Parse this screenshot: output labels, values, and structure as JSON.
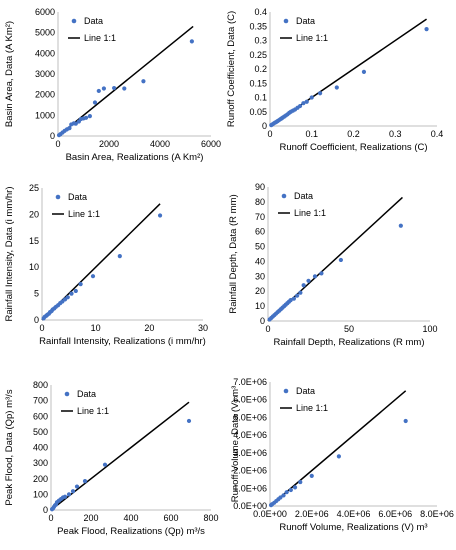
{
  "chart_data": [
    {
      "type": "scatter",
      "xlabel": "Basin Area, Realizations (A Km²)",
      "ylabel": "Basin Area, Data (A Km²)",
      "xlim": [
        0,
        6000
      ],
      "ylim": [
        0,
        6000
      ],
      "xticks": [
        "0",
        "2000",
        "4000",
        "6000"
      ],
      "yticks": [
        "0",
        "1000",
        "2000",
        "3000",
        "4000",
        "5000",
        "6000"
      ],
      "legend": [
        "Data",
        "Line 1:1"
      ],
      "line": [
        [
          0,
          0
        ],
        [
          5300,
          5300
        ]
      ],
      "points": [
        [
          40,
          40
        ],
        [
          100,
          90
        ],
        [
          180,
          170
        ],
        [
          260,
          250
        ],
        [
          350,
          320
        ],
        [
          450,
          380
        ],
        [
          520,
          560
        ],
        [
          620,
          610
        ],
        [
          700,
          600
        ],
        [
          820,
          700
        ],
        [
          900,
          820
        ],
        [
          1000,
          850
        ],
        [
          1100,
          880
        ],
        [
          1250,
          960
        ],
        [
          1450,
          1620
        ],
        [
          1600,
          2180
        ],
        [
          1800,
          2300
        ],
        [
          2200,
          2320
        ],
        [
          2600,
          2300
        ],
        [
          3350,
          2650
        ],
        [
          5250,
          4580
        ]
      ]
    },
    {
      "type": "scatter",
      "xlabel": "Runoff Coefficient, Realizations (C)",
      "ylabel": "Runoff Coefficient, Data (C)",
      "xlim": [
        0,
        0.4
      ],
      "ylim": [
        0,
        0.4
      ],
      "xticks": [
        "0",
        "0.1",
        "0.2",
        "0.3",
        "0.4"
      ],
      "yticks": [
        "0",
        "0.05",
        "0.1",
        "0.15",
        "0.2",
        "0.25",
        "0.3",
        "0.35",
        "0.4"
      ],
      "legend": [
        "Data",
        "Line 1:1"
      ],
      "line": [
        [
          0,
          0
        ],
        [
          0.375,
          0.375
        ]
      ],
      "points": [
        [
          0.003,
          0.003
        ],
        [
          0.006,
          0.006
        ],
        [
          0.009,
          0.009
        ],
        [
          0.012,
          0.012
        ],
        [
          0.015,
          0.014
        ],
        [
          0.018,
          0.017
        ],
        [
          0.021,
          0.02
        ],
        [
          0.024,
          0.023
        ],
        [
          0.027,
          0.026
        ],
        [
          0.03,
          0.029
        ],
        [
          0.034,
          0.033
        ],
        [
          0.038,
          0.037
        ],
        [
          0.042,
          0.041
        ],
        [
          0.046,
          0.046
        ],
        [
          0.05,
          0.05
        ],
        [
          0.055,
          0.054
        ],
        [
          0.06,
          0.058
        ],
        [
          0.066,
          0.064
        ],
        [
          0.072,
          0.07
        ],
        [
          0.08,
          0.08
        ],
        [
          0.088,
          0.085
        ],
        [
          0.1,
          0.1
        ],
        [
          0.12,
          0.115
        ],
        [
          0.16,
          0.135
        ],
        [
          0.225,
          0.19
        ],
        [
          0.375,
          0.34
        ]
      ]
    },
    {
      "type": "scatter",
      "xlabel": "Rainfall Intensity, Realizations (i mm/hr)",
      "ylabel": "Rainfall Intensity, Data (i mm/hr)",
      "xlim": [
        0,
        30
      ],
      "ylim": [
        0,
        25
      ],
      "xticks": [
        "0",
        "10",
        "20",
        "30"
      ],
      "yticks": [
        "0",
        "5",
        "10",
        "15",
        "20",
        "25"
      ],
      "legend": [
        "Data",
        "Line 1:1"
      ],
      "line": [
        [
          0,
          0
        ],
        [
          22,
          22
        ]
      ],
      "points": [
        [
          0.3,
          0.3
        ],
        [
          0.5,
          0.6
        ],
        [
          0.8,
          0.8
        ],
        [
          1.0,
          1.0
        ],
        [
          1.3,
          1.2
        ],
        [
          1.5,
          1.5
        ],
        [
          1.8,
          1.7
        ],
        [
          2.0,
          2.0
        ],
        [
          2.3,
          2.2
        ],
        [
          2.6,
          2.5
        ],
        [
          3.0,
          2.8
        ],
        [
          3.4,
          3.2
        ],
        [
          3.8,
          3.5
        ],
        [
          4.3,
          3.9
        ],
        [
          4.8,
          4.3
        ],
        [
          5.5,
          5.0
        ],
        [
          6.3,
          5.5
        ],
        [
          7.2,
          6.8
        ],
        [
          9.5,
          8.3
        ],
        [
          14.5,
          12.1
        ],
        [
          22.0,
          19.8
        ]
      ]
    },
    {
      "type": "scatter",
      "xlabel": "Rainfall Depth, Realizations (R mm)",
      "ylabel": "Rainfall Depth, Data (R mm)",
      "xlim": [
        0,
        100
      ],
      "ylim": [
        0,
        90
      ],
      "xticks": [
        "0",
        "50",
        "100"
      ],
      "yticks": [
        "0",
        "10",
        "20",
        "30",
        "40",
        "50",
        "60",
        "70",
        "80",
        "90"
      ],
      "legend": [
        "Data",
        "Line 1:1"
      ],
      "line": [
        [
          0,
          0
        ],
        [
          83,
          83
        ]
      ],
      "points": [
        [
          1,
          1
        ],
        [
          2,
          2
        ],
        [
          3,
          3
        ],
        [
          4,
          4
        ],
        [
          5,
          5
        ],
        [
          6,
          6
        ],
        [
          7,
          7
        ],
        [
          8,
          8
        ],
        [
          9,
          9
        ],
        [
          10,
          10
        ],
        [
          11,
          11
        ],
        [
          12,
          12
        ],
        [
          13,
          13
        ],
        [
          14,
          14
        ],
        [
          16,
          15
        ],
        [
          18,
          17
        ],
        [
          20,
          19
        ],
        [
          22,
          24
        ],
        [
          25,
          27
        ],
        [
          29,
          30
        ],
        [
          33,
          32
        ],
        [
          45,
          41
        ],
        [
          82,
          64
        ]
      ]
    },
    {
      "type": "scatter",
      "xlabel": "Peak Flood, Realizations (Qp) m³/s",
      "ylabel": "Peak Flood, Data (Qp) m³/s",
      "xlim": [
        0,
        800
      ],
      "ylim": [
        0,
        800
      ],
      "xticks": [
        "0",
        "200",
        "400",
        "600",
        "800"
      ],
      "yticks": [
        "0",
        "100",
        "200",
        "300",
        "400",
        "500",
        "600",
        "700",
        "800"
      ],
      "legend": [
        "Data",
        "Line 1:1"
      ],
      "line": [
        [
          0,
          0
        ],
        [
          690,
          690
        ]
      ],
      "points": [
        [
          5,
          5
        ],
        [
          10,
          10
        ],
        [
          15,
          20
        ],
        [
          20,
          30
        ],
        [
          25,
          35
        ],
        [
          30,
          50
        ],
        [
          40,
          60
        ],
        [
          50,
          70
        ],
        [
          60,
          80
        ],
        [
          70,
          85
        ],
        [
          90,
          100
        ],
        [
          110,
          120
        ],
        [
          130,
          150
        ],
        [
          170,
          185
        ],
        [
          270,
          290
        ],
        [
          690,
          570
        ]
      ]
    },
    {
      "type": "scatter",
      "xlabel": "Runoff Volume, Realizations (V) m³",
      "ylabel": "Runoff Volume, Data (V) m³",
      "xlim": [
        0,
        8000000
      ],
      "ylim": [
        0,
        7000000
      ],
      "xticks": [
        "0.0E+00",
        "2.0E+06",
        "4.0E+06",
        "6.0E+06",
        "8.0E+06"
      ],
      "yticks": [
        "0.0E+00",
        "1.0E+06",
        "2.0E+06",
        "3.0E+06",
        "4.0E+06",
        "5.0E+06",
        "6.0E+06",
        "7.0E+06"
      ],
      "legend": [
        "Data",
        "Line 1:1"
      ],
      "line": [
        [
          0,
          0
        ],
        [
          6500000,
          6500000
        ]
      ],
      "points": [
        [
          50000,
          50000
        ],
        [
          100000,
          100000
        ],
        [
          200000,
          180000
        ],
        [
          300000,
          280000
        ],
        [
          400000,
          380000
        ],
        [
          500000,
          480000
        ],
        [
          650000,
          600000
        ],
        [
          800000,
          780000
        ],
        [
          1000000,
          900000
        ],
        [
          1200000,
          1050000
        ],
        [
          1450000,
          1350000
        ],
        [
          2000000,
          1700000
        ],
        [
          3300000,
          2800000
        ],
        [
          6500000,
          4800000
        ]
      ]
    }
  ]
}
